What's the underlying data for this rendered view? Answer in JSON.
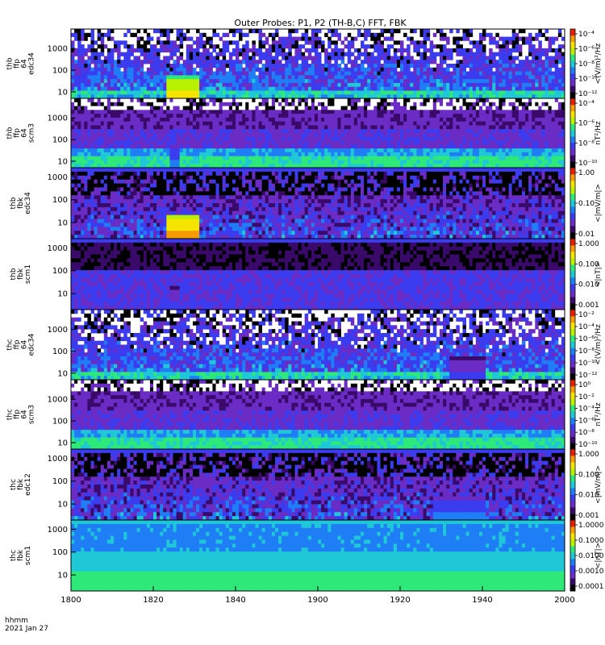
{
  "chart_data": {
    "type": "heatmap",
    "title": "Outer Probes: P1, P2 (TH-B,C) FFT, FBK",
    "time_label_line1": "hhmm",
    "time_label_line2": "2021 Jan 27",
    "x": {
      "range": [
        1800,
        2000
      ],
      "ticks": [
        "1800",
        "1820",
        "1840",
        "1900",
        "1920",
        "1940",
        "2000"
      ],
      "tick_minutes": [
        0,
        20,
        40,
        60,
        80,
        100,
        120
      ]
    },
    "colormap": [
      "#000000",
      "#3a0a6a",
      "#6a2cc4",
      "#3b3bf0",
      "#1f7ef5",
      "#1fc8d6",
      "#2ee87a",
      "#b8f000",
      "#f5e400",
      "#f59a00",
      "#e81e00"
    ],
    "panels": [
      {
        "id": "thb-ffp-edc34",
        "ylabel": [
          "thb",
          "ffp",
          "64",
          "edc34"
        ],
        "yticks": [
          "10",
          "100",
          "1000"
        ],
        "ylog": [
          0.7,
          3.9
        ],
        "colorbar_label": "<(V/m)²/Hz",
        "colorbar_ticks": [
          "10⁻⁴",
          "10⁻⁶",
          "10⁻⁸",
          "10⁻¹⁰",
          "10⁻¹²"
        ],
        "kind": "ffp_e",
        "events": [
          [
            23,
            31,
            8
          ]
        ]
      },
      {
        "id": "thb-ffp-scm3",
        "ylabel": [
          "thb",
          "ffp",
          "64",
          "scm3"
        ],
        "yticks": [
          "10",
          "100",
          "1000"
        ],
        "ylog": [
          0.7,
          3.9
        ],
        "colorbar_label": "nT²/Hz",
        "colorbar_ticks": [
          "10⁻⁴",
          "10⁻⁶",
          "10⁻⁸",
          "10⁻¹⁰"
        ],
        "kind": "ffp_b",
        "events": [
          [
            24,
            26,
            4
          ]
        ]
      },
      {
        "id": "thb-fbk-edc34",
        "ylabel": [
          "thb",
          "fbk",
          "edc34"
        ],
        "yticks": [
          "10",
          "100",
          "1000"
        ],
        "ylog": [
          0.3,
          3.4
        ],
        "colorbar_label": "<|mV/m|>",
        "colorbar_ticks": [
          "1.00",
          "0.10",
          "0.01"
        ],
        "kind": "fbk_e",
        "events": [
          [
            23,
            31,
            9
          ]
        ]
      },
      {
        "id": "thb-fbk-scm1",
        "ylabel": [
          "thb",
          "fbk",
          "scm1"
        ],
        "yticks": [
          "10",
          "100",
          "1000"
        ],
        "ylog": [
          0.3,
          3.4
        ],
        "colorbar_label": "<|nT|>",
        "colorbar_ticks": [
          "1.000",
          "0.100",
          "0.010",
          "0.001"
        ],
        "kind": "fbk_b",
        "events": [
          [
            24,
            26,
            3
          ]
        ]
      },
      {
        "id": "thc-ffp-edc34",
        "ylabel": [
          "thc",
          "ffp",
          "64",
          "edc34"
        ],
        "yticks": [
          "10",
          "100",
          "1000"
        ],
        "ylog": [
          0.7,
          3.9
        ],
        "colorbar_label": "<(V/m)²/Hz",
        "colorbar_ticks": [
          "10⁻²",
          "10⁻⁴",
          "10⁻⁶",
          "10⁻⁸",
          "10⁻¹⁰",
          "10⁻¹²"
        ],
        "kind": "ffp_e",
        "events": [
          [
            92,
            100,
            3
          ]
        ]
      },
      {
        "id": "thc-ffp-scm3",
        "ylabel": [
          "thc",
          "ffp",
          "64",
          "scm3"
        ],
        "yticks": [
          "10",
          "100",
          "1000"
        ],
        "ylog": [
          0.7,
          3.9
        ],
        "colorbar_label": "nT²/Hz",
        "colorbar_ticks": [
          "10⁰",
          "10⁻²",
          "10⁻⁴",
          "10⁻⁶",
          "10⁻⁸",
          "10⁻¹⁰"
        ],
        "kind": "ffp_b",
        "events": []
      },
      {
        "id": "thc-fbk-edc12",
        "ylabel": [
          "thc",
          "fbk",
          "edc12"
        ],
        "yticks": [
          "10",
          "100",
          "1000"
        ],
        "ylog": [
          0.3,
          3.4
        ],
        "colorbar_label": "<|mV/m|>",
        "colorbar_ticks": [
          "1.000",
          "0.100",
          "0.010",
          "0.001"
        ],
        "kind": "fbk_e",
        "events": [
          [
            88,
            100,
            4
          ]
        ]
      },
      {
        "id": "thc-fbk-scm1",
        "ylabel": [
          "thc",
          "fbk",
          "scm1"
        ],
        "yticks": [
          "10",
          "100",
          "1000"
        ],
        "ylog": [
          0.3,
          3.4
        ],
        "colorbar_label": "<|nT|>",
        "colorbar_ticks": [
          "1.0000",
          "0.1000",
          "0.0100",
          "0.0010",
          "0.0001"
        ],
        "kind": "fbk_b2",
        "events": []
      }
    ]
  }
}
